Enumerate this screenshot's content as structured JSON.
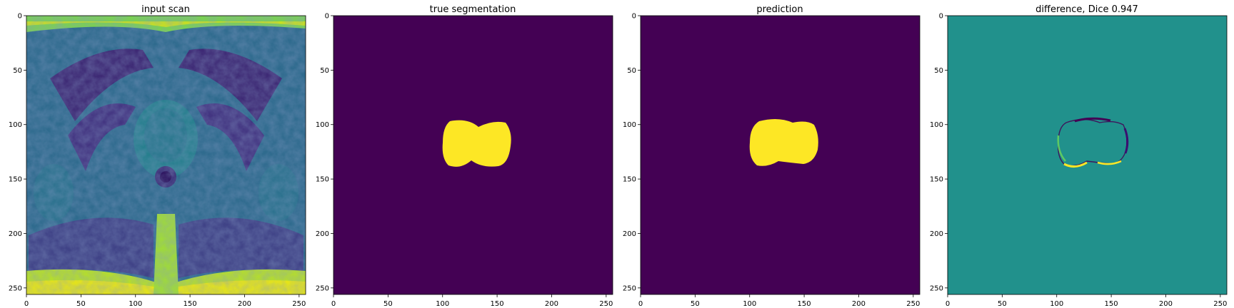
{
  "colors": {
    "background": "#440154",
    "foreground": "#fde725",
    "neutral": "#21918c",
    "mid": "#3b528b",
    "bright": "#5ec962",
    "axis": "#000000"
  },
  "chart_data": [
    {
      "type": "heatmap",
      "title": "input scan",
      "content": "grayscale MRI axial pelvis slice rendered with viridis colormap",
      "xlim": [
        0,
        256
      ],
      "ylim": [
        256,
        0
      ],
      "xticks": [
        "0",
        "50",
        "100",
        "150",
        "200",
        "250"
      ],
      "yticks": [
        "0",
        "50",
        "100",
        "150",
        "200",
        "250"
      ],
      "colormap": "viridis"
    },
    {
      "type": "heatmap",
      "title": "true segmentation",
      "content": "binary mask, single prostate region",
      "xlim": [
        0,
        256
      ],
      "ylim": [
        256,
        0
      ],
      "xticks": [
        "0",
        "50",
        "100",
        "150",
        "200",
        "250"
      ],
      "yticks": [
        "0",
        "50",
        "100",
        "150",
        "200",
        "250"
      ],
      "region": {
        "x_range": [
          101,
          162
        ],
        "y_range": [
          98,
          140
        ],
        "value": 1
      },
      "colormap": "viridis"
    },
    {
      "type": "heatmap",
      "title": "prediction",
      "content": "binary mask, predicted prostate region",
      "xlim": [
        0,
        256
      ],
      "ylim": [
        256,
        0
      ],
      "xticks": [
        "0",
        "50",
        "100",
        "150",
        "200",
        "250"
      ],
      "yticks": [
        "0",
        "50",
        "100",
        "150",
        "200",
        "250"
      ],
      "region": {
        "x_range": [
          99,
          163
        ],
        "y_range": [
          96,
          140
        ],
        "value": 1
      },
      "colormap": "viridis"
    },
    {
      "type": "heatmap",
      "title": "difference, Dice 0.947",
      "content": "difference map (prediction - truth), mostly 0 with thin boundary errors",
      "dice": 0.947,
      "xlim": [
        0,
        256
      ],
      "ylim": [
        256,
        0
      ],
      "xticks": [
        "0",
        "50",
        "100",
        "150",
        "200",
        "250"
      ],
      "yticks": [
        "0",
        "50",
        "100",
        "150",
        "200",
        "250"
      ],
      "colormap": "viridis"
    }
  ]
}
